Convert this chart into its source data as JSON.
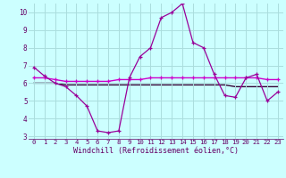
{
  "hours": [
    0,
    1,
    2,
    3,
    4,
    5,
    6,
    7,
    8,
    9,
    10,
    11,
    12,
    13,
    14,
    15,
    16,
    17,
    18,
    19,
    20,
    21,
    22,
    23
  ],
  "line1": [
    6.9,
    6.4,
    6.0,
    5.8,
    5.3,
    4.7,
    3.3,
    3.2,
    3.3,
    6.3,
    7.5,
    8.0,
    9.7,
    10.0,
    10.5,
    8.3,
    8.0,
    6.5,
    5.3,
    5.2,
    6.3,
    6.5,
    5.0,
    5.5
  ],
  "line2": [
    6.3,
    6.3,
    6.2,
    6.1,
    6.1,
    6.1,
    6.1,
    6.1,
    6.2,
    6.2,
    6.2,
    6.3,
    6.3,
    6.3,
    6.3,
    6.3,
    6.3,
    6.3,
    6.3,
    6.3,
    6.3,
    6.3,
    6.2,
    6.2
  ],
  "line3": [
    6.0,
    6.0,
    6.0,
    5.9,
    5.9,
    5.9,
    5.9,
    5.9,
    5.9,
    5.9,
    5.9,
    5.9,
    5.9,
    5.9,
    5.9,
    5.9,
    5.9,
    5.9,
    5.9,
    5.8,
    5.8,
    5.8,
    5.8,
    5.8
  ],
  "line_color1": "#990099",
  "line_color2": "#cc00cc",
  "line_color3": "#330033",
  "bg_color": "#ccffff",
  "grid_color": "#aadddd",
  "text_color": "#660066",
  "xlabel": "Windchill (Refroidissement éolien,°C)",
  "ylim_min": 3,
  "ylim_max": 10,
  "yticks": [
    3,
    4,
    5,
    6,
    7,
    8,
    9,
    10
  ]
}
